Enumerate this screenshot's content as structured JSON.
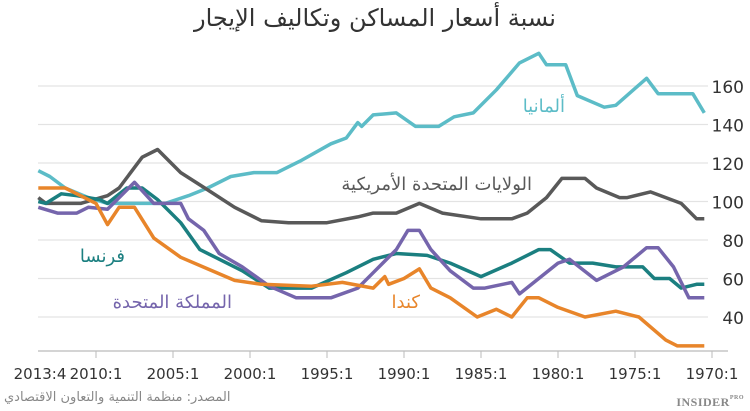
{
  "chart_data": {
    "type": "line",
    "title": "نسبة أسعار المساكن وتكاليف الإيجار",
    "xlabel": "",
    "ylabel": "",
    "x_ticks": [
      "2013:4",
      "2010:1",
      "2005:1",
      "2000:1",
      "1995:1",
      "1990:1",
      "1985:1",
      "1980:1",
      "1975:1",
      "1970:1"
    ],
    "x_reversed": true,
    "y_ticks": [
      40,
      60,
      80,
      100,
      120,
      140,
      160
    ],
    "ylim": [
      22,
      180
    ],
    "y_axis_side": "right",
    "grid": true,
    "legend": "inline labels",
    "series": [
      {
        "name": "ألمانيا",
        "color": "#5cbcc7",
        "points": [
          [
            "2013:4",
            116
          ],
          [
            "2013:1",
            113
          ],
          [
            "2012:1",
            107
          ],
          [
            "2010:3",
            102
          ],
          [
            "2009:2",
            99
          ],
          [
            "2005:3",
            99
          ],
          [
            "2004:1",
            103
          ],
          [
            "2002:4",
            107
          ],
          [
            "2001:2",
            113
          ],
          [
            "1999:4",
            115
          ],
          [
            "1998:2",
            115
          ],
          [
            "1996:4",
            121
          ],
          [
            "1994:4",
            130
          ],
          [
            "1993:4",
            133
          ],
          [
            "1993:1",
            141
          ],
          [
            "1992:4",
            139
          ],
          [
            "1992:1",
            145
          ],
          [
            "1990:3",
            146
          ],
          [
            "1989:2",
            139
          ],
          [
            "1987:4",
            139
          ],
          [
            "1986:4",
            144
          ],
          [
            "1985:3",
            146
          ],
          [
            "1984:1",
            158
          ],
          [
            "1982:3",
            172
          ],
          [
            "1981:2",
            177
          ],
          [
            "1980:4",
            171
          ],
          [
            "1979:3",
            171
          ],
          [
            "1978:4",
            155
          ],
          [
            "1977:1",
            149
          ],
          [
            "1976:2",
            150
          ],
          [
            "1974:2",
            164
          ],
          [
            "1973:3",
            156
          ],
          [
            "1971:2",
            156
          ],
          [
            "1970:3",
            146
          ]
        ]
      },
      {
        "name": "الولايات المتحدة الأمريكية",
        "color": "#595959",
        "points": [
          [
            "2013:4",
            102
          ],
          [
            "2013:2",
            99
          ],
          [
            "2011:1",
            99
          ],
          [
            "2009:2",
            103
          ],
          [
            "2008:3",
            107
          ],
          [
            "2007:1",
            123
          ],
          [
            "2006:1",
            127
          ],
          [
            "2004:3",
            115
          ],
          [
            "2002:4",
            106
          ],
          [
            "2001:1",
            97
          ],
          [
            "1999:2",
            90
          ],
          [
            "1997:3",
            89
          ],
          [
            "1995:1",
            89
          ],
          [
            "1993:1",
            92
          ],
          [
            "1992:1",
            94
          ],
          [
            "1990:3",
            94
          ],
          [
            "1989:1",
            99
          ],
          [
            "1987:3",
            94
          ],
          [
            "1985:1",
            91
          ],
          [
            "1983:1",
            91
          ],
          [
            "1982:1",
            94
          ],
          [
            "1980:4",
            102
          ],
          [
            "1979:4",
            112
          ],
          [
            "1978:2",
            112
          ],
          [
            "1977:3",
            107
          ],
          [
            "1976:1",
            102
          ],
          [
            "1975:3",
            102
          ],
          [
            "1974:1",
            105
          ],
          [
            "1972:1",
            99
          ],
          [
            "1971:1",
            91
          ],
          [
            "1970:3",
            91
          ]
        ]
      },
      {
        "name": "فرنسا",
        "color": "#1b7f80",
        "points": [
          [
            "2013:4",
            100
          ],
          [
            "2013:2",
            99
          ],
          [
            "2012:2",
            104
          ],
          [
            "2011:2",
            103
          ],
          [
            "2009:4",
            101
          ],
          [
            "2009:2",
            99
          ],
          [
            "2008:1",
            107
          ],
          [
            "2007:1",
            107
          ],
          [
            "2006:1",
            101
          ],
          [
            "2004:3",
            89
          ],
          [
            "2003:2",
            75
          ],
          [
            "2002:2",
            71
          ],
          [
            "2000:3",
            64
          ],
          [
            "1998:4",
            55
          ],
          [
            "1996:1",
            55
          ],
          [
            "1993:4",
            63
          ],
          [
            "1992:1",
            70
          ],
          [
            "1990:3",
            73
          ],
          [
            "1988:3",
            72
          ],
          [
            "1987:1",
            68
          ],
          [
            "1985:1",
            61
          ],
          [
            "1983:1",
            68
          ],
          [
            "1981:2",
            75
          ],
          [
            "1980:3",
            75
          ],
          [
            "1979:2",
            68
          ],
          [
            "1977:4",
            68
          ],
          [
            "1976:2",
            66
          ],
          [
            "1974:3",
            66
          ],
          [
            "1973:4",
            60
          ],
          [
            "1972:4",
            60
          ],
          [
            "1972:1",
            55
          ],
          [
            "1971:1",
            57
          ],
          [
            "1970:3",
            57
          ]
        ]
      },
      {
        "name": "المملكة المتحدة",
        "color": "#7565ac",
        "points": [
          [
            "2013:4",
            97
          ],
          [
            "2012:3",
            94
          ],
          [
            "2011:2",
            94
          ],
          [
            "2010:3",
            97
          ],
          [
            "2009:2",
            96
          ],
          [
            "2007:3",
            110
          ],
          [
            "2006:2",
            99
          ],
          [
            "2004:3",
            99
          ],
          [
            "2004:1",
            91
          ],
          [
            "2003:1",
            85
          ],
          [
            "2002:1",
            73
          ],
          [
            "2000:3",
            66
          ],
          [
            "1998:4",
            56
          ],
          [
            "1997:1",
            50
          ],
          [
            "1994:4",
            50
          ],
          [
            "1993:1",
            55
          ],
          [
            "1992:1",
            63
          ],
          [
            "1990:3",
            75
          ],
          [
            "1989:4",
            85
          ],
          [
            "1989:1",
            85
          ],
          [
            "1988:2",
            75
          ],
          [
            "1987:1",
            64
          ],
          [
            "1985:3",
            55
          ],
          [
            "1984:4",
            55
          ],
          [
            "1983:1",
            58
          ],
          [
            "1982:3",
            52
          ],
          [
            "1980:1",
            68
          ],
          [
            "1979:2",
            70
          ],
          [
            "1977:3",
            59
          ],
          [
            "1975:4",
            66
          ],
          [
            "1974:2",
            76
          ],
          [
            "1973:3",
            76
          ],
          [
            "1972:3",
            66
          ],
          [
            "1971:3",
            50
          ],
          [
            "1970:3",
            50
          ]
        ]
      },
      {
        "name": "كندا",
        "color": "#e8852a",
        "points": [
          [
            "2013:4",
            107
          ],
          [
            "2012:1",
            107
          ],
          [
            "2010:1",
            99
          ],
          [
            "2009:2",
            88
          ],
          [
            "2008:3",
            97
          ],
          [
            "2007:3",
            97
          ],
          [
            "2006:2",
            81
          ],
          [
            "2004:3",
            71
          ],
          [
            "2002:4",
            65
          ],
          [
            "2001:1",
            59
          ],
          [
            "1999:2",
            57
          ],
          [
            "1996:1",
            56
          ],
          [
            "1994:1",
            58
          ],
          [
            "1992:1",
            55
          ],
          [
            "1991:2",
            61
          ],
          [
            "1991:1",
            57
          ],
          [
            "1990:1",
            60
          ],
          [
            "1989:1",
            65
          ],
          [
            "1988:2",
            55
          ],
          [
            "1987:1",
            50
          ],
          [
            "1985:2",
            40
          ],
          [
            "1984:1",
            44
          ],
          [
            "1983:1",
            40
          ],
          [
            "1982:1",
            50
          ],
          [
            "1981:2",
            50
          ],
          [
            "1980:1",
            45
          ],
          [
            "1978:2",
            40
          ],
          [
            "1976:2",
            43
          ],
          [
            "1974:4",
            40
          ],
          [
            "1973:1",
            28
          ],
          [
            "1972:2",
            25
          ],
          [
            "1970:3",
            25
          ]
        ]
      }
    ]
  },
  "source": "المصدر: منظمة التنمية والتعاون الاقتصادي",
  "logo": {
    "text": "INSIDER",
    "sup": "PRO"
  }
}
